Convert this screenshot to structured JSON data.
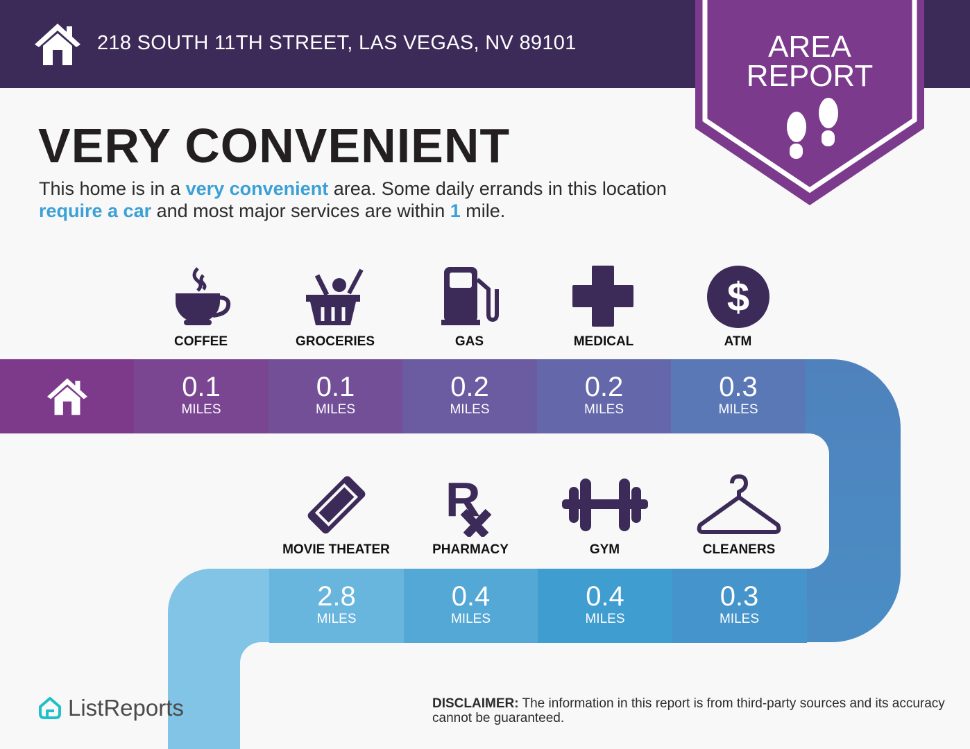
{
  "header": {
    "address": "218 SOUTH 11TH STREET, LAS VEGAS, NV 89101",
    "home_icon": "house-icon"
  },
  "badge": {
    "line1": "AREA",
    "line2": "REPORT",
    "icon": "footprints-icon",
    "color": "#7b3a8c"
  },
  "title": "VERY CONVENIENT",
  "description": {
    "p1": "This home is in a ",
    "h1": "very convenient",
    "p2": " area. Some daily errands in this location ",
    "h2": "require a car",
    "p3": " and most major services are within ",
    "h3": "1",
    "p4": " mile."
  },
  "unit": "MILES",
  "top_row": [
    {
      "label": "COFFEE",
      "value": "0.1",
      "icon": "coffee-cup-icon",
      "color": "#7a4692"
    },
    {
      "label": "GROCERIES",
      "value": "0.1",
      "icon": "grocery-basket-icon",
      "color": "#734f98"
    },
    {
      "label": "GAS",
      "value": "0.2",
      "icon": "gas-pump-icon",
      "color": "#6b5ba0"
    },
    {
      "label": "MEDICAL",
      "value": "0.2",
      "icon": "medical-cross-icon",
      "color": "#6468aa"
    },
    {
      "label": "ATM",
      "value": "0.3",
      "icon": "dollar-icon",
      "color": "#5a78b6"
    }
  ],
  "bottom_row": [
    {
      "label": "MOVIE THEATER",
      "value": "2.8",
      "icon": "ticket-icon",
      "color": "#68b5de"
    },
    {
      "label": "PHARMACY",
      "value": "0.4",
      "icon": "rx-icon",
      "color": "#53a8d6"
    },
    {
      "label": "GYM",
      "value": "0.4",
      "icon": "dumbbell-icon",
      "color": "#3f9dd0"
    },
    {
      "label": "CLEANERS",
      "value": "0.3",
      "icon": "hanger-icon",
      "color": "#4594cb"
    }
  ],
  "footer": {
    "logo": "ListReports",
    "disclaimer_label": "DISCLAIMER:",
    "disclaimer": " The information in this report is from third-party sources and its accuracy cannot be guaranteed."
  }
}
